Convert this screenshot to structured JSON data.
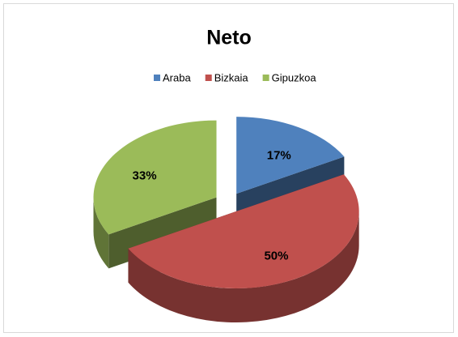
{
  "chart_data": {
    "type": "pie",
    "title": "Neto",
    "categories": [
      "Araba",
      "Bizkaia",
      "Gipuzkoa"
    ],
    "values": [
      17,
      50,
      33
    ],
    "value_labels": [
      "17%",
      "50%",
      "33%"
    ],
    "colors": [
      "#4f81bd",
      "#c0504d",
      "#9bbb59"
    ],
    "legend": "top"
  }
}
